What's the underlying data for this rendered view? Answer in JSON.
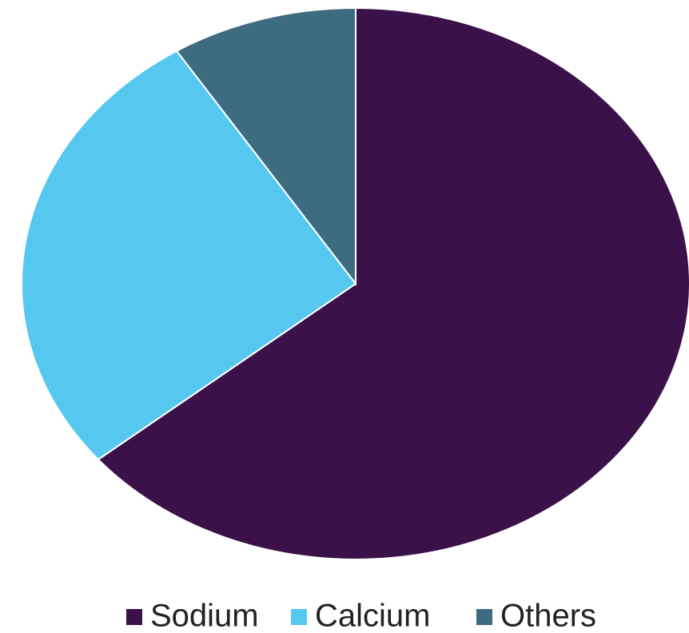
{
  "chart_data": {
    "type": "pie",
    "categories": [
      "Sodium",
      "Calcium",
      "Others"
    ],
    "values": [
      64,
      27,
      9
    ],
    "colors": [
      "#3a1149",
      "#56c8f0",
      "#3d6b80"
    ],
    "legend": "bottom"
  }
}
